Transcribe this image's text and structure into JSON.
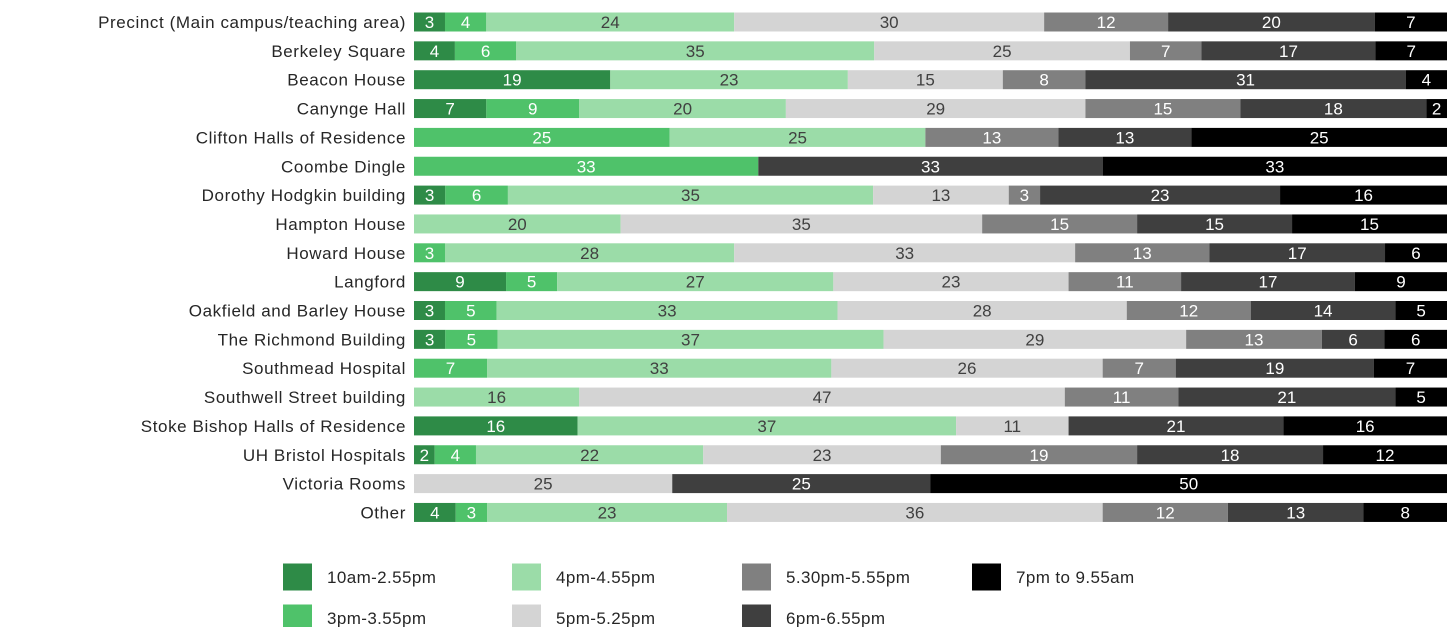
{
  "chart_data": {
    "type": "bar",
    "orientation": "horizontal",
    "stacked": "100%",
    "title": "",
    "xlabel": "",
    "ylabel": "",
    "grid": false,
    "legend_position": "bottom",
    "categories": [
      "Precinct (Main campus/teaching area)",
      "Berkeley Square",
      "Beacon House",
      "Canynge Hall",
      "Clifton Halls of Residence",
      "Coombe Dingle",
      "Dorothy Hodgkin building",
      "Hampton House",
      "Howard House",
      "Langford",
      "Oakfield and Barley House",
      "The Richmond Building",
      "Southmead Hospital",
      "Southwell Street building",
      "Stoke Bishop Halls of Residence",
      "UH Bristol Hospitals",
      "Victoria Rooms",
      "Other"
    ],
    "series": [
      {
        "name": "10am-2.55pm",
        "color": "#2e8b47",
        "values": [
          3,
          4,
          19,
          7,
          0,
          0,
          3,
          0,
          0,
          9,
          3,
          3,
          0,
          0,
          16,
          2,
          0,
          4
        ]
      },
      {
        "name": "3pm-3.55pm",
        "color": "#4fc26a",
        "values": [
          4,
          6,
          0,
          9,
          25,
          33,
          6,
          0,
          3,
          5,
          5,
          5,
          7,
          0,
          0,
          4,
          0,
          3
        ]
      },
      {
        "name": "4pm-4.55pm",
        "color": "#9bdca8",
        "values": [
          24,
          35,
          23,
          20,
          25,
          0,
          35,
          20,
          28,
          27,
          33,
          37,
          33,
          16,
          37,
          22,
          0,
          23
        ]
      },
      {
        "name": "5pm-5.25pm",
        "color": "#d4d4d4",
        "values": [
          30,
          25,
          15,
          29,
          0,
          0,
          13,
          35,
          33,
          23,
          28,
          29,
          26,
          47,
          11,
          23,
          25,
          36
        ]
      },
      {
        "name": "5.30pm-5.55pm",
        "color": "#808080",
        "values": [
          12,
          7,
          8,
          15,
          13,
          0,
          3,
          15,
          13,
          11,
          12,
          13,
          7,
          11,
          0,
          19,
          0,
          12
        ]
      },
      {
        "name": "6pm-6.55pm",
        "color": "#3f3f3f",
        "values": [
          20,
          17,
          31,
          18,
          13,
          33,
          23,
          15,
          17,
          17,
          14,
          6,
          19,
          21,
          21,
          18,
          25,
          13
        ]
      },
      {
        "name": "7pm to 9.55am",
        "color": "#000000",
        "values": [
          7,
          7,
          4,
          2,
          25,
          33,
          16,
          15,
          6,
          9,
          5,
          6,
          7,
          5,
          16,
          12,
          50,
          8
        ]
      }
    ],
    "label_colors": [
      "#ffffff",
      "#ffffff",
      "#404040",
      "#404040",
      "#ffffff",
      "#ffffff",
      "#ffffff"
    ],
    "legend_order": [
      0,
      2,
      4,
      6,
      1,
      3,
      5
    ]
  }
}
